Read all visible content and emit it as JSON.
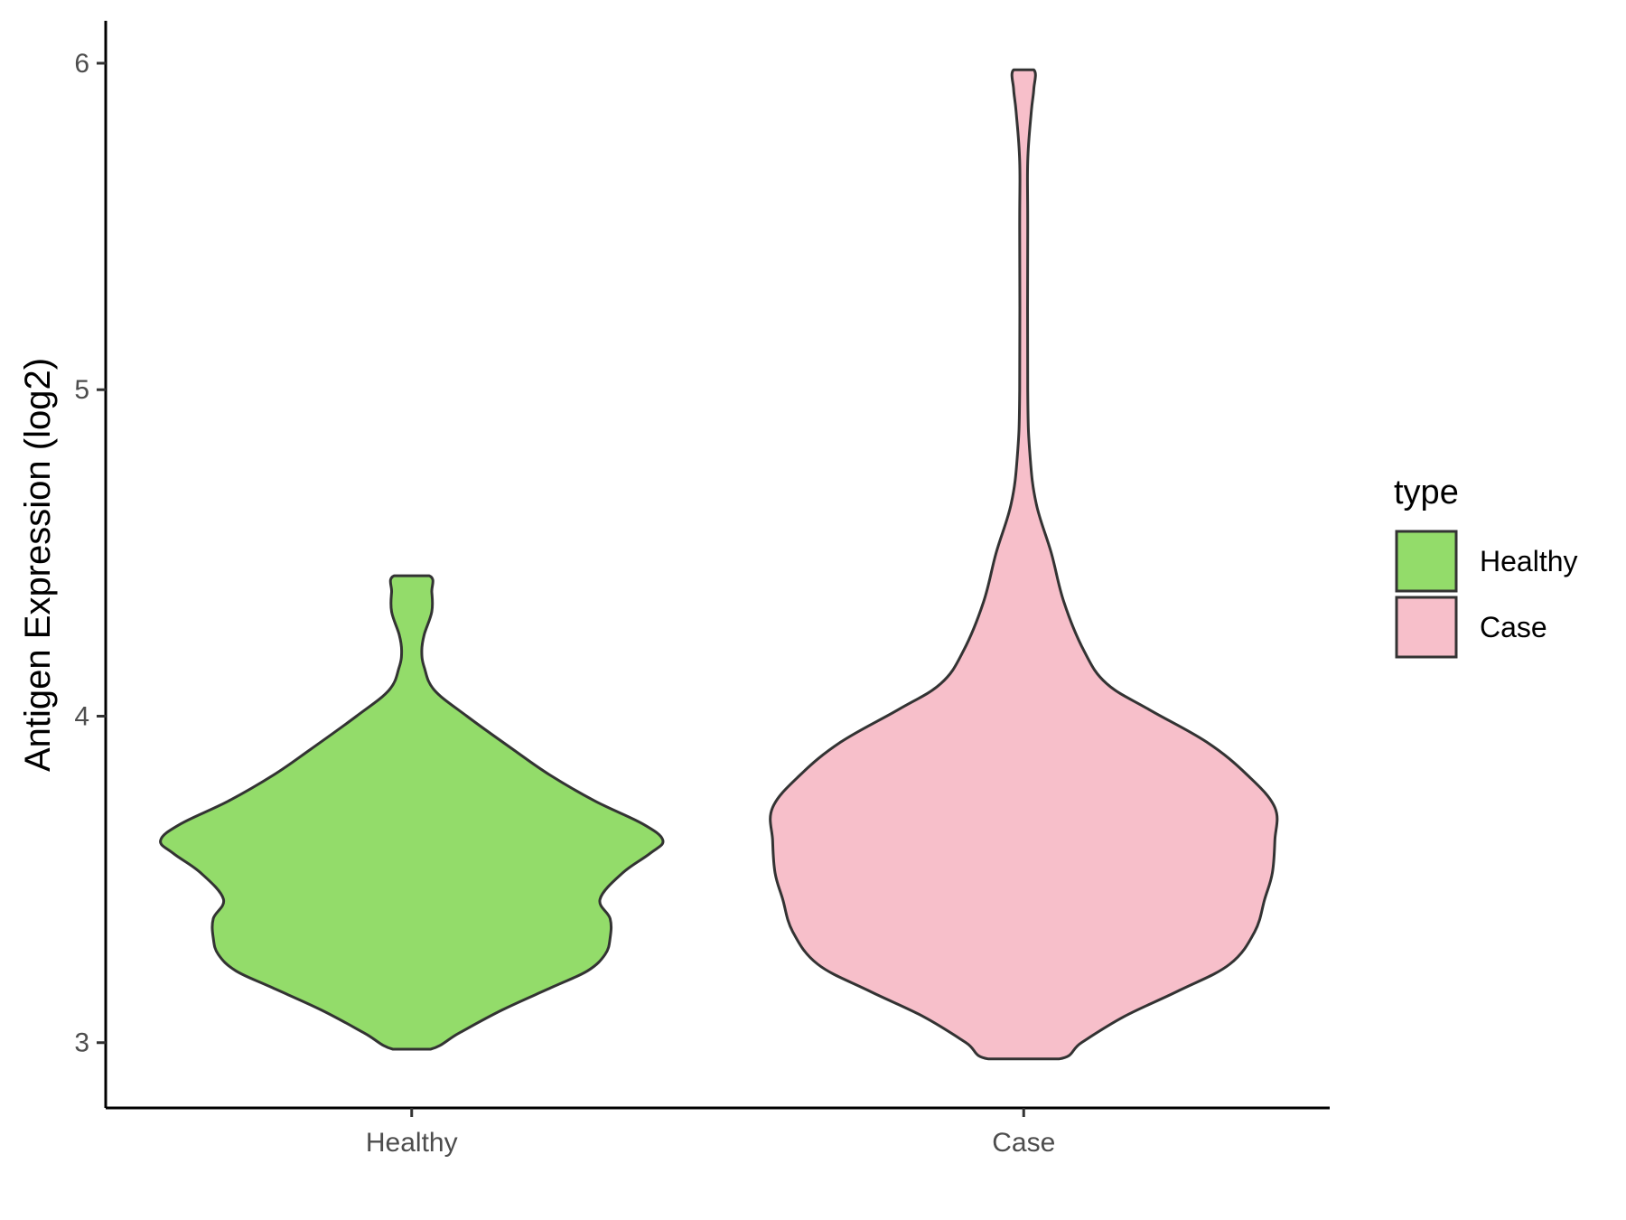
{
  "chart_data": {
    "type": "violin",
    "ylabel": "Antigen Expression (log2)",
    "xlabel": "",
    "ylim": [
      2.8,
      6.13
    ],
    "yticks": [
      3,
      4,
      5,
      6
    ],
    "ytick_labels": [
      "3",
      "4",
      "5",
      "6"
    ],
    "categories": [
      "Healthy",
      "Case"
    ],
    "grid": false,
    "legend": {
      "title": "type",
      "position": "right",
      "entries": [
        "Healthy",
        "Case"
      ]
    },
    "series": [
      {
        "name": "Healthy",
        "color": "#93DC6A",
        "min": 2.98,
        "max": 4.43,
        "profile": [
          [
            2.98,
            0.075
          ],
          [
            3.03,
            0.19
          ],
          [
            3.1,
            0.36
          ],
          [
            3.17,
            0.56
          ],
          [
            3.22,
            0.7
          ],
          [
            3.27,
            0.77
          ],
          [
            3.32,
            0.79
          ],
          [
            3.38,
            0.79
          ],
          [
            3.44,
            0.75
          ],
          [
            3.52,
            0.84
          ],
          [
            3.58,
            0.95
          ],
          [
            3.62,
            1.0
          ],
          [
            3.67,
            0.92
          ],
          [
            3.74,
            0.73
          ],
          [
            3.82,
            0.55
          ],
          [
            3.9,
            0.4
          ],
          [
            4.0,
            0.22
          ],
          [
            4.08,
            0.09
          ],
          [
            4.15,
            0.05
          ],
          [
            4.2,
            0.04
          ],
          [
            4.25,
            0.05
          ],
          [
            4.32,
            0.08
          ],
          [
            4.38,
            0.08
          ],
          [
            4.43,
            0.07
          ]
        ]
      },
      {
        "name": "Case",
        "color": "#F7BFCA",
        "min": 2.95,
        "max": 5.98,
        "profile": [
          [
            2.95,
            0.14
          ],
          [
            3.0,
            0.23
          ],
          [
            3.08,
            0.4
          ],
          [
            3.16,
            0.62
          ],
          [
            3.24,
            0.82
          ],
          [
            3.34,
            0.92
          ],
          [
            3.44,
            0.96
          ],
          [
            3.52,
            0.99
          ],
          [
            3.62,
            1.0
          ],
          [
            3.72,
            1.0
          ],
          [
            3.82,
            0.89
          ],
          [
            3.92,
            0.73
          ],
          [
            4.02,
            0.5
          ],
          [
            4.1,
            0.33
          ],
          [
            4.2,
            0.24
          ],
          [
            4.35,
            0.16
          ],
          [
            4.5,
            0.11
          ],
          [
            4.65,
            0.05
          ],
          [
            4.8,
            0.025
          ],
          [
            5.0,
            0.016
          ],
          [
            5.5,
            0.016
          ],
          [
            5.7,
            0.016
          ],
          [
            5.85,
            0.03
          ],
          [
            5.92,
            0.04
          ],
          [
            5.98,
            0.04
          ]
        ]
      }
    ]
  }
}
